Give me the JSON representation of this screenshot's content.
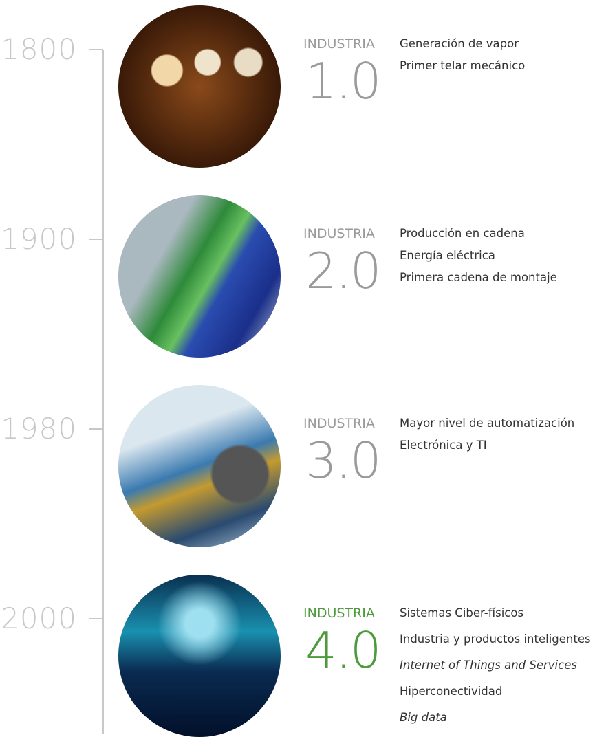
{
  "eras": [
    {
      "year": "1800",
      "label": "INDUSTRIA",
      "version": "1.0",
      "accent_color": "#9a9a9a",
      "items": [
        {
          "text": "Generación de vapor",
          "italic": false
        },
        {
          "text": "Primer telar mecánico",
          "italic": false
        }
      ]
    },
    {
      "year": "1900",
      "label": "INDUSTRIA",
      "version": "2.0",
      "accent_color": "#9a9a9a",
      "items": [
        {
          "text": "Producción en cadena",
          "italic": false
        },
        {
          "text": "Energía eléctrica",
          "italic": false
        },
        {
          "text": "Primera cadena de montaje",
          "italic": false
        }
      ]
    },
    {
      "year": "1980",
      "label": "INDUSTRIA",
      "version": "3.0",
      "accent_color": "#9a9a9a",
      "items": [
        {
          "text": "Mayor nivel de automatización",
          "italic": false
        },
        {
          "text": "Electrónica y TI",
          "italic": false
        }
      ]
    },
    {
      "year": "2000",
      "label": "INDUSTRIA",
      "version": "4.0",
      "accent_color": "#4d9a3c",
      "items": [
        {
          "text": "Sistemas Ciber-físicos",
          "italic": false
        },
        {
          "text": "Industria y productos inteligentes",
          "italic": false
        },
        {
          "text": "Internet of Things and Services",
          "italic": true
        },
        {
          "text": "Hiperconectividad",
          "italic": false
        },
        {
          "text": "Big data",
          "italic": true
        }
      ]
    }
  ]
}
